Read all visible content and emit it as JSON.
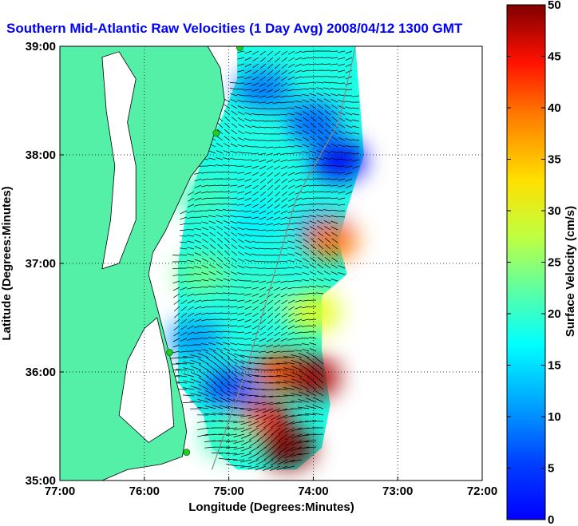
{
  "chart_data": {
    "type": "heatmap",
    "title": "Southern Mid-Atlantic Raw Velocities (1 Day Avg) 2008/04/12 1300 GMT",
    "xlabel": "Longitude (Degrees:Minutes)",
    "ylabel": "Latitude (Degrees:Minutes)",
    "colorbar_label": "Surface Velocity (cm/s)",
    "x_ticks": [
      "77:00",
      "76:00",
      "75:00",
      "74:00",
      "73:00",
      "72:00"
    ],
    "x_tick_values": [
      -77,
      -76,
      -75,
      -74,
      -73,
      -72
    ],
    "y_ticks": [
      "39:00",
      "38:00",
      "37:00",
      "36:00",
      "35:00"
    ],
    "y_tick_values": [
      39,
      38,
      37,
      36,
      35
    ],
    "xlim": [
      -77,
      -72
    ],
    "ylim": [
      35,
      39
    ],
    "grid": true,
    "colorbar_ticks": [
      0,
      5,
      10,
      15,
      20,
      25,
      30,
      35,
      40,
      45,
      50
    ],
    "colorbar_range": [
      0,
      50
    ],
    "colormap": "jet",
    "land_color": "#55f0a8",
    "station_color": "#22cc22",
    "stations": [
      {
        "lon": -74.87,
        "lat": 38.99
      },
      {
        "lon": -75.15,
        "lat": 38.2
      },
      {
        "lon": -75.7,
        "lat": 36.18
      },
      {
        "lon": -75.5,
        "lat": 35.26
      }
    ],
    "velocity_regions": [
      {
        "lon": -74.6,
        "lat": 38.6,
        "speed": 12
      },
      {
        "lon": -74.0,
        "lat": 38.3,
        "speed": 11
      },
      {
        "lon": -73.7,
        "lat": 37.95,
        "speed": 6
      },
      {
        "lon": -74.8,
        "lat": 38.2,
        "speed": 20
      },
      {
        "lon": -75.3,
        "lat": 37.6,
        "speed": 22
      },
      {
        "lon": -74.7,
        "lat": 37.4,
        "speed": 18
      },
      {
        "lon": -73.9,
        "lat": 37.3,
        "speed": 14
      },
      {
        "lon": -73.8,
        "lat": 37.22,
        "speed": 38
      },
      {
        "lon": -75.3,
        "lat": 36.9,
        "speed": 24
      },
      {
        "lon": -74.6,
        "lat": 36.7,
        "speed": 22
      },
      {
        "lon": -74.0,
        "lat": 36.55,
        "speed": 30
      },
      {
        "lon": -75.4,
        "lat": 36.3,
        "speed": 14
      },
      {
        "lon": -75.0,
        "lat": 35.85,
        "speed": 10
      },
      {
        "lon": -74.4,
        "lat": 36.0,
        "speed": 40
      },
      {
        "lon": -74.0,
        "lat": 35.95,
        "speed": 48
      },
      {
        "lon": -74.6,
        "lat": 35.55,
        "speed": 44
      },
      {
        "lon": -74.3,
        "lat": 35.3,
        "speed": 50
      },
      {
        "lon": -75.0,
        "lat": 35.4,
        "speed": 22
      }
    ]
  }
}
